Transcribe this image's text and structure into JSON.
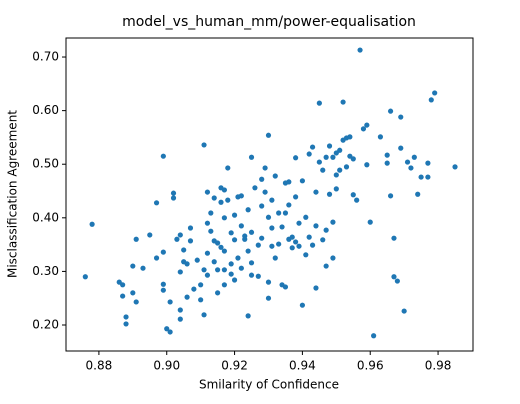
{
  "chart_data": {
    "type": "scatter",
    "title": "model_vs_human_mm/power-equalisation",
    "x_label": "Smilarity of Confidence",
    "y_label": "Misclassification Agreement",
    "color": "#1f77b4",
    "xlim": [
      0.8703,
      0.9903
    ],
    "ylim": [
      0.1515,
      0.7355
    ],
    "xticks": [
      0.88,
      {
        "value": 0.9,
        "label": "0.90"
      },
      0.92,
      0.94,
      0.96,
      0.98
    ],
    "yticks": [
      {
        "value": 0.2,
        "label": "0.20"
      },
      {
        "value": 0.3,
        "label": "0.30"
      },
      {
        "value": 0.4,
        "label": "0.40"
      },
      {
        "value": 0.5,
        "label": "0.50"
      },
      {
        "value": 0.6,
        "label": "0.60"
      },
      {
        "value": 0.7,
        "label": "0.70"
      }
    ],
    "x": [
      0.876,
      0.878,
      0.886,
      0.887,
      0.888,
      0.888,
      0.887,
      0.89,
      0.891,
      0.891,
      0.89,
      0.893,
      0.895,
      0.897,
      0.897,
      0.899,
      0.899,
      0.899,
      0.899,
      0.9,
      0.901,
      0.901,
      0.902,
      0.902,
      0.903,
      0.904,
      0.904,
      0.904,
      0.904,
      0.905,
      0.905,
      0.906,
      0.906,
      0.907,
      0.907,
      0.908,
      0.909,
      0.91,
      0.91,
      0.911,
      0.911,
      0.911,
      0.912,
      0.912,
      0.912,
      0.912,
      0.913,
      0.913,
      0.914,
      0.914,
      0.914,
      0.915,
      0.915,
      0.915,
      0.916,
      0.916,
      0.916,
      0.917,
      0.917,
      0.917,
      0.917,
      0.917,
      0.918,
      0.918,
      0.919,
      0.919,
      0.919,
      0.92,
      0.92,
      0.92,
      0.921,
      0.921,
      0.922,
      0.922,
      0.922,
      0.923,
      0.923,
      0.924,
      0.924,
      0.924,
      0.925,
      0.925,
      0.925,
      0.925,
      0.926,
      0.927,
      0.927,
      0.928,
      0.928,
      0.928,
      0.929,
      0.929,
      0.93,
      0.93,
      0.93,
      0.93,
      0.931,
      0.931,
      0.931,
      0.932,
      0.932,
      0.933,
      0.933,
      0.934,
      0.934,
      0.935,
      0.935,
      0.935,
      0.936,
      0.936,
      0.936,
      0.937,
      0.937,
      0.938,
      0.938,
      0.938,
      0.939,
      0.939,
      0.94,
      0.94,
      0.941,
      0.941,
      0.942,
      0.942,
      0.943,
      0.943,
      0.944,
      0.944,
      0.944,
      0.945,
      0.945,
      0.946,
      0.946,
      0.947,
      0.947,
      0.947,
      0.948,
      0.948,
      0.949,
      0.949,
      0.949,
      0.95,
      0.95,
      0.95,
      0.951,
      0.951,
      0.952,
      0.952,
      0.953,
      0.953,
      0.954,
      0.954,
      0.955,
      0.955,
      0.956,
      0.957,
      0.958,
      0.959,
      0.959,
      0.96,
      0.961,
      0.963,
      0.965,
      0.965,
      0.966,
      0.966,
      0.967,
      0.967,
      0.968,
      0.969,
      0.969,
      0.97,
      0.971,
      0.972,
      0.973,
      0.974,
      0.975,
      0.977,
      0.977,
      0.978,
      0.979,
      0.985
    ],
    "y": [
      0.29,
      0.388,
      0.28,
      0.254,
      0.215,
      0.202,
      0.275,
      0.31,
      0.36,
      0.243,
      0.26,
      0.306,
      0.368,
      0.325,
      0.428,
      0.515,
      0.336,
      0.276,
      0.265,
      0.193,
      0.187,
      0.243,
      0.437,
      0.446,
      0.36,
      0.368,
      0.299,
      0.211,
      0.228,
      0.34,
      0.318,
      0.252,
      0.314,
      0.381,
      0.357,
      0.267,
      0.321,
      0.247,
      0.275,
      0.303,
      0.536,
      0.219,
      0.39,
      0.334,
      0.448,
      0.293,
      0.409,
      0.375,
      0.357,
      0.318,
      0.437,
      0.26,
      0.303,
      0.353,
      0.456,
      0.345,
      0.429,
      0.452,
      0.303,
      0.4,
      0.338,
      0.275,
      0.433,
      0.493,
      0.372,
      0.314,
      0.295,
      0.405,
      0.359,
      0.284,
      0.439,
      0.325,
      0.385,
      0.306,
      0.441,
      0.366,
      0.36,
      0.338,
      0.415,
      0.217,
      0.373,
      0.293,
      0.316,
      0.513,
      0.456,
      0.349,
      0.291,
      0.472,
      0.422,
      0.362,
      0.493,
      0.448,
      0.554,
      0.28,
      0.25,
      0.401,
      0.347,
      0.433,
      0.381,
      0.478,
      0.325,
      0.409,
      0.351,
      0.383,
      0.275,
      0.465,
      0.271,
      0.409,
      0.36,
      0.467,
      0.424,
      0.364,
      0.344,
      0.512,
      0.355,
      0.439,
      0.39,
      0.347,
      0.237,
      0.469,
      0.401,
      0.331,
      0.519,
      0.364,
      0.349,
      0.532,
      0.448,
      0.269,
      0.385,
      0.614,
      0.504,
      0.359,
      0.489,
      0.377,
      0.513,
      0.31,
      0.444,
      0.534,
      0.392,
      0.325,
      0.513,
      0.48,
      0.454,
      0.521,
      0.489,
      0.526,
      0.616,
      0.545,
      0.495,
      0.549,
      0.515,
      0.551,
      0.443,
      0.51,
      0.433,
      0.713,
      0.566,
      0.573,
      0.499,
      0.392,
      0.18,
      0.551,
      0.502,
      0.517,
      0.599,
      0.441,
      0.362,
      0.29,
      0.282,
      0.588,
      0.53,
      0.226,
      0.504,
      0.493,
      0.513,
      0.444,
      0.476,
      0.476,
      0.502,
      0.62,
      0.633,
      0.495
    ]
  }
}
